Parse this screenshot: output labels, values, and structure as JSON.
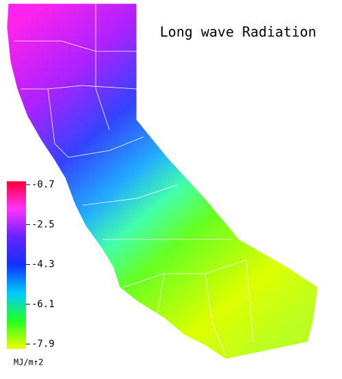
{
  "title": "Long wave Radiation",
  "colorbar": {
    "label": "MJ/m↑2",
    "lim": [
      -7.9,
      -0.7
    ],
    "ticks": [
      -0.7,
      -2.5,
      -4.3,
      -6.1,
      -7.9
    ],
    "colors": [
      "#ff0033",
      "#ff33ff",
      "#6622ff",
      "#1133ff",
      "#00ccff",
      "#22ff22",
      "#eeff00"
    ]
  }
}
